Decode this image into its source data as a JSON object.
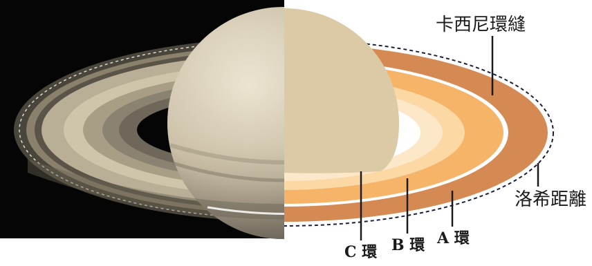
{
  "labels": {
    "cassini": "卡西尼環縫",
    "roche": "洛希距離",
    "ring_c": "C 環",
    "ring_b": "B 環",
    "ring_a": "A 環"
  },
  "colors": {
    "photo_bg": "#050505",
    "planet_diagram": "#dcc9a5",
    "ring_a": "#d48a52",
    "ring_b": "#f6b469",
    "ring_b_light": "#fbd8a4",
    "ring_c": "#fce8c8",
    "cassini_gap": "#ffffff",
    "roche_line": "#1a1f3a"
  }
}
